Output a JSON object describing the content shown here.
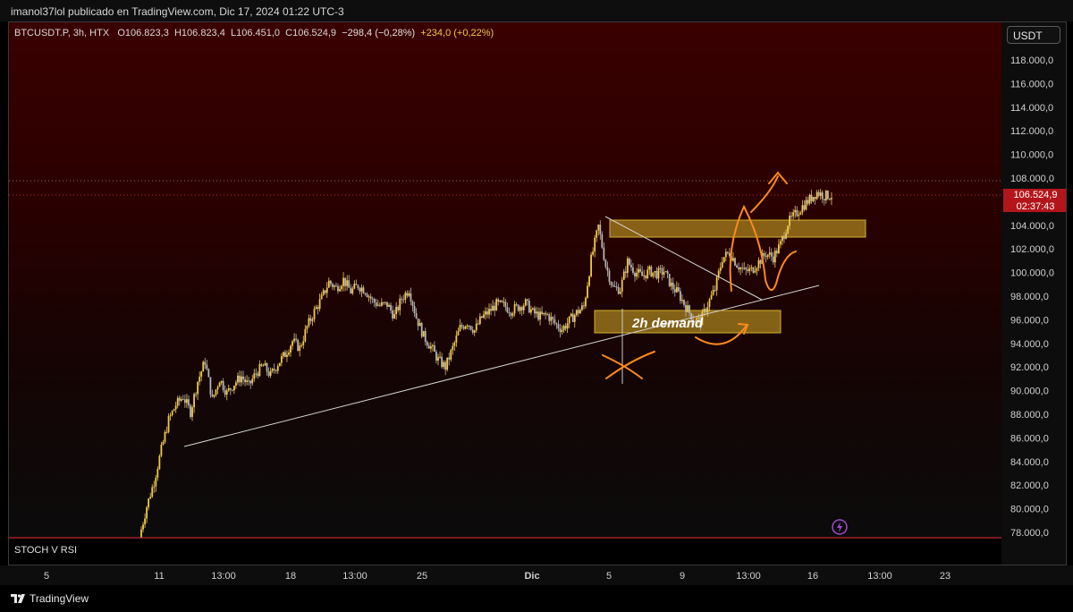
{
  "header": {
    "publisher_line": "imanol37lol publicado en TradingView.com, Dic 17, 2024 01:22 UTC-3"
  },
  "legend": {
    "symbol": "BTCUSDT.P, 3h, HTX",
    "open": "O106.823,3",
    "high": "H106.823,4",
    "low": "L106.451,0",
    "close": "C106.524,9",
    "change": "−298,4 (−0,28%)",
    "volume_change": "+234,0 (+0,22%)"
  },
  "currency": "USDT",
  "indicator_label": "STOCH V RSI",
  "footer": {
    "logo_text": "TradingView"
  },
  "price_badge": {
    "price": "106.524,9",
    "countdown": "02:37:43"
  },
  "annotations": {
    "demand_label": "2h demand"
  },
  "colors": {
    "candle_up": "#f0c84a",
    "candle_down": "#b5b5b5",
    "zone_fill": "#c9a227",
    "annotation": "#ff8a1a",
    "trendline": "#d4d4d4"
  },
  "chart_data": {
    "type": "candlestick",
    "y_ticks": [
      "118.000,0",
      "116.000,0",
      "114.000,0",
      "112.000,0",
      "110.000,0",
      "108.000,0",
      "106.000,0",
      "104.000,0",
      "102.000,0",
      "100.000,0",
      "98.000,0",
      "96.000,0",
      "94.000,0",
      "92.000,0",
      "90.000,0",
      "88.000,0",
      "86.000,0",
      "84.000,0",
      "82.000,0",
      "80.000,0",
      "78.000,0"
    ],
    "ylim": [
      77500,
      119200
    ],
    "x_ticks": [
      "5",
      "11",
      "13:00",
      "18",
      "13:00",
      "25",
      "Dic",
      "5",
      "9",
      "13:00",
      "16",
      "13:00",
      "23"
    ],
    "last_price": 106524.9,
    "series_close": [
      77600,
      80200,
      82300,
      85000,
      87500,
      88800,
      89500,
      88200,
      90800,
      92500,
      89200,
      91000,
      89800,
      90600,
      91200,
      90400,
      91500,
      92100,
      91300,
      92300,
      93100,
      94200,
      93600,
      95400,
      96700,
      97800,
      99200,
      98700,
      99400,
      98400,
      98900,
      98500,
      97600,
      97200,
      97300,
      96300,
      97800,
      98600,
      96200,
      94600,
      93700,
      92600,
      92000,
      93600,
      95300,
      95800,
      95100,
      96200,
      96700,
      97300,
      97200,
      96800,
      97100,
      97400,
      96600,
      96300,
      96400,
      95700,
      95200,
      95900,
      96600,
      97100,
      101100,
      103900,
      100600,
      98700,
      98600,
      100900,
      100100,
      99700,
      100100,
      99900,
      100100,
      98900,
      98200,
      97100,
      96100,
      95900,
      97300,
      98600,
      101200,
      101700,
      100700,
      100100,
      100200,
      100900,
      101600,
      101300,
      102400,
      104200,
      104900,
      105600,
      106200,
      106800,
      106500,
      106525
    ]
  }
}
